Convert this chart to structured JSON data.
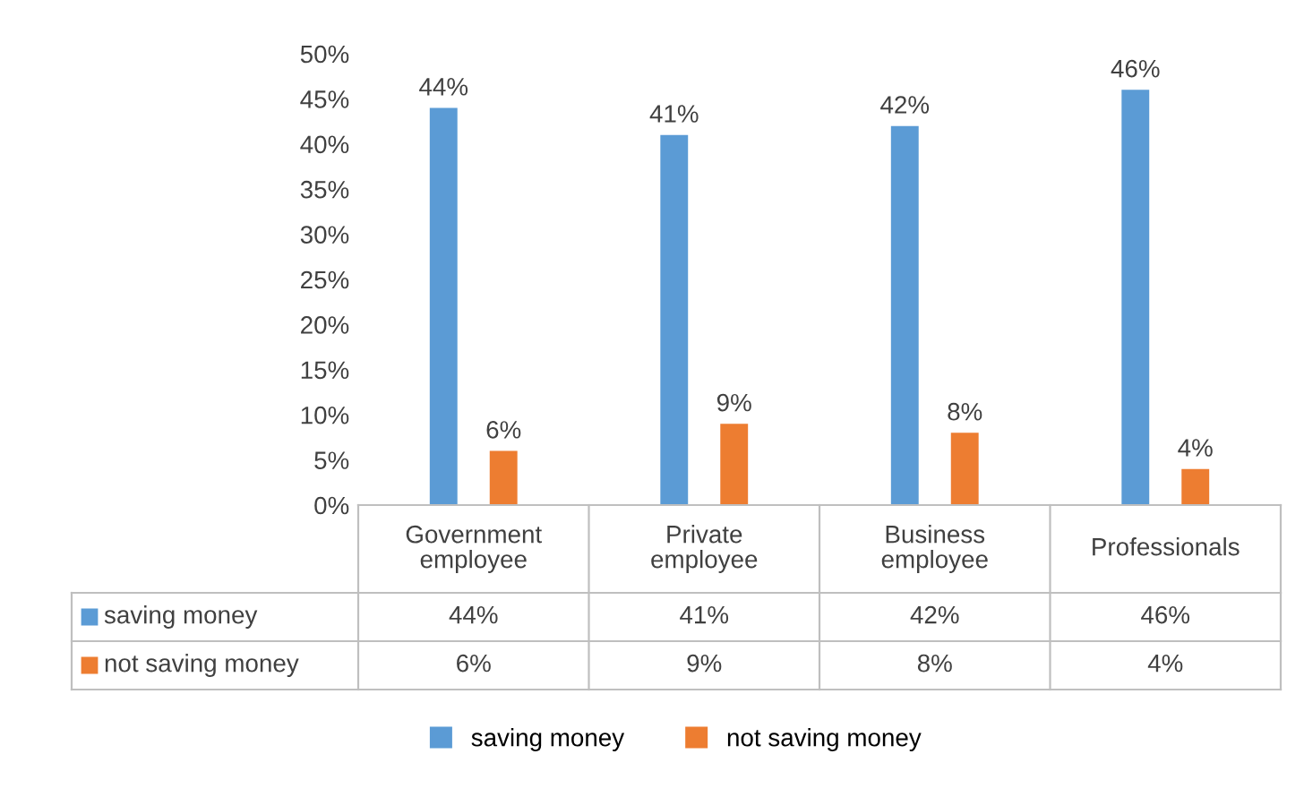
{
  "chart_data": {
    "type": "bar",
    "categories": [
      "Government employee",
      "Private employee",
      "Business employee",
      "Professionals"
    ],
    "series": [
      {
        "name": "saving money",
        "color": "#5b9bd5",
        "values": [
          44,
          41,
          42,
          46
        ],
        "value_labels": [
          "44%",
          "41%",
          "42%",
          "46%"
        ]
      },
      {
        "name": "not saving money",
        "color": "#ed7d31",
        "values": [
          6,
          9,
          8,
          4
        ],
        "value_labels": [
          "6%",
          "9%",
          "8%",
          "4%"
        ]
      }
    ],
    "ylim": [
      0,
      50
    ],
    "yticks": [
      {
        "value": 0,
        "label": "0%"
      },
      {
        "value": 5,
        "label": "5%"
      },
      {
        "value": 10,
        "label": "10%"
      },
      {
        "value": 15,
        "label": "15%"
      },
      {
        "value": 20,
        "label": "20%"
      },
      {
        "value": 25,
        "label": "25%"
      },
      {
        "value": 30,
        "label": "30%"
      },
      {
        "value": 35,
        "label": "35%"
      },
      {
        "value": 40,
        "label": "40%"
      },
      {
        "value": 45,
        "label": "45%"
      },
      {
        "value": 50,
        "label": "50%"
      }
    ],
    "grid": false,
    "legend": "bottom"
  }
}
